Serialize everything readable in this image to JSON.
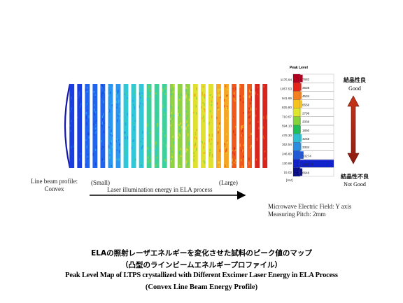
{
  "profile_label": [
    "Line beam profile:",
    "Convex"
  ],
  "axis": {
    "small_label": "(Small)",
    "large_label": "(Large)",
    "arrow_label": "Laser illumination energy in ELA process"
  },
  "legend": {
    "title": "Peak Level",
    "ticks": [
      "1175.94",
      "1057.53",
      "941.69",
      "825.80",
      "710.07",
      "594.13",
      "478.30",
      "362.54",
      "246.60",
      "130.69",
      "15.02"
    ],
    "unit": "[mV]",
    "counts": [
      "7682",
      "3638",
      "4534",
      "6556",
      "2799",
      "2036",
      "1850",
      "4258",
      "3334",
      "10274",
      "102374",
      "6646"
    ],
    "colors": [
      "#b3001e",
      "#e8231a",
      "#f77f1e",
      "#f7c21c",
      "#dfe52a",
      "#85d43c",
      "#1fbe5a",
      "#2fbfd3",
      "#2c8ee0",
      "#2059d8",
      "#1223cc",
      "#0a0f8a"
    ]
  },
  "quality": {
    "good_jp": "結晶性良",
    "good_en": "Good",
    "bad_jp": "結晶性不良",
    "bad_en": "Not Good"
  },
  "measurement": [
    "Microwave Electric Field: Y axis",
    "Measuring Pitch: 2mm"
  ],
  "caption": {
    "jp_line1": "ELAの照射レーザエネルギーを変化させた試料のピーク値のマップ",
    "jp_line2": "（凸型のラインビームエネルギープロファイル）",
    "en_line1": "Peak Level Map of LTPS crystallized with Different Excimer Laser Energy in ELA Process",
    "en_line2": "(Convex Line Beam Energy Profile)"
  },
  "stripes": {
    "count": 26,
    "level_colors": [
      "#1a3fe0",
      "#1f63ee",
      "#2a96f0",
      "#30c7d8",
      "#3ed09a",
      "#8fd244",
      "#dfe030",
      "#f5a623",
      "#ef5a1c",
      "#d8241c"
    ]
  }
}
